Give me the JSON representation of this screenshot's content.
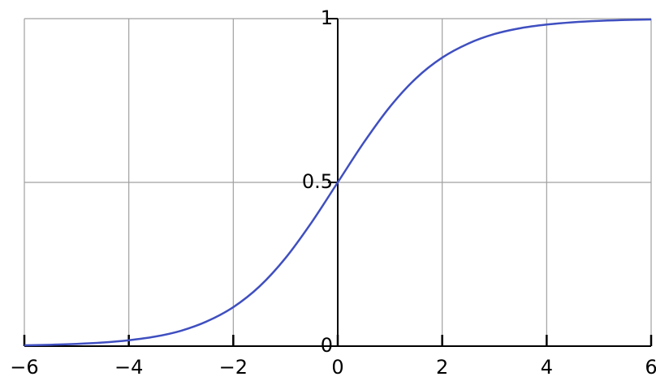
{
  "chart_data": {
    "type": "line",
    "x": [
      -6,
      -5.5,
      -5,
      -4.5,
      -4,
      -3.5,
      -3,
      -2.5,
      -2,
      -1.5,
      -1,
      -0.5,
      0,
      0.5,
      1,
      1.5,
      2,
      2.5,
      3,
      3.5,
      4,
      4.5,
      5,
      5.5,
      6
    ],
    "series": [
      {
        "color": "#3f4fc0",
        "values": [
          0.0025,
          0.0041,
          0.0067,
          0.011,
          0.018,
          0.029,
          0.047,
          0.076,
          0.119,
          0.182,
          0.269,
          0.378,
          0.5,
          0.622,
          0.731,
          0.818,
          0.881,
          0.924,
          0.953,
          0.971,
          0.982,
          0.989,
          0.9933,
          0.9959,
          0.9975
        ]
      }
    ],
    "xlim": [
      -6,
      6
    ],
    "xticks": [
      {
        "value": -6,
        "label": "−6"
      },
      {
        "value": -4,
        "label": "−4"
      },
      {
        "value": -2,
        "label": "−2"
      },
      0,
      2,
      4,
      6
    ],
    "ylim": [
      0,
      1
    ],
    "yticks": [
      0,
      0.5,
      1
    ],
    "grid": true
  }
}
